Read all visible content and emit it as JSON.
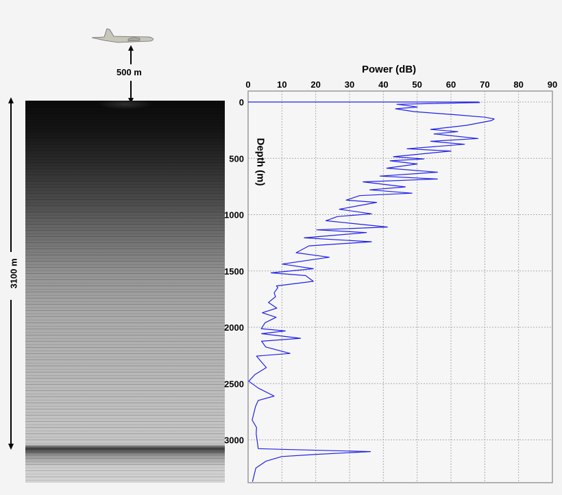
{
  "annotations": {
    "altitude_label": "500 m",
    "ice_thickness_label": "3100 m"
  },
  "icons": {
    "aircraft": "airplane-icon"
  },
  "colors": {
    "series": "#1f1fe6",
    "grid": "#aaaaaa",
    "background": "#f4f4f4"
  },
  "chart_data": {
    "type": "line",
    "title": "",
    "xlabel": "Power (dB)",
    "ylabel": "Depth (m)",
    "xlim": [
      0,
      90
    ],
    "ylim": [
      3375,
      0
    ],
    "x_axis_position": "top",
    "xticks": [
      0,
      10,
      20,
      30,
      40,
      50,
      60,
      70,
      80,
      90
    ],
    "yticks": [
      0,
      500,
      1000,
      1500,
      2000,
      2500,
      3000
    ],
    "grid": true,
    "series": [
      {
        "points": [
          [
            0,
            0
          ],
          [
            25,
            0
          ],
          [
            68,
            0
          ],
          [
            68.5,
            5
          ],
          [
            44,
            20
          ],
          [
            48,
            35
          ],
          [
            50,
            45
          ],
          [
            43.6,
            60
          ],
          [
            49,
            85
          ],
          [
            62,
            115
          ],
          [
            70,
            135
          ],
          [
            72.8,
            150
          ],
          [
            72,
            165
          ],
          [
            64.5,
            207
          ],
          [
            54,
            243
          ],
          [
            62,
            263
          ],
          [
            55,
            283
          ],
          [
            68,
            324
          ],
          [
            54,
            349
          ],
          [
            64,
            375
          ],
          [
            47,
            415
          ],
          [
            60,
            435
          ],
          [
            43,
            486
          ],
          [
            52,
            506
          ],
          [
            42,
            522
          ],
          [
            50,
            550
          ],
          [
            41,
            587
          ],
          [
            56,
            623
          ],
          [
            39,
            658
          ],
          [
            56,
            684
          ],
          [
            34,
            709
          ],
          [
            46.5,
            754
          ],
          [
            36,
            780
          ],
          [
            48.5,
            810
          ],
          [
            33,
            831
          ],
          [
            29,
            871
          ],
          [
            38,
            891
          ],
          [
            27,
            952
          ],
          [
            36.5,
            993
          ],
          [
            26.4,
            1017
          ],
          [
            23,
            1054
          ],
          [
            41.2,
            1110
          ],
          [
            20.3,
            1135
          ],
          [
            35,
            1159
          ],
          [
            16.6,
            1206
          ],
          [
            36.5,
            1241
          ],
          [
            18,
            1277
          ],
          [
            14.2,
            1338
          ],
          [
            24,
            1378
          ],
          [
            10.1,
            1439
          ],
          [
            19.3,
            1480
          ],
          [
            6.8,
            1517
          ],
          [
            17,
            1541
          ],
          [
            19.3,
            1592
          ],
          [
            8.4,
            1633
          ],
          [
            8.8,
            1648
          ],
          [
            7.7,
            1694
          ],
          [
            8.1,
            1729
          ],
          [
            6,
            1780
          ],
          [
            8.5,
            1830
          ],
          [
            4.2,
            1871
          ],
          [
            8.3,
            1911
          ],
          [
            5,
            1960
          ],
          [
            3.9,
            2013
          ],
          [
            11,
            2033
          ],
          [
            4,
            2057
          ],
          [
            15.5,
            2098
          ],
          [
            4,
            2124
          ],
          [
            5.2,
            2175
          ],
          [
            12.4,
            2232
          ],
          [
            2.5,
            2256
          ],
          [
            4,
            2310
          ],
          [
            5.4,
            2358
          ],
          [
            2,
            2420
          ],
          [
            0.2,
            2479
          ],
          [
            3,
            2540
          ],
          [
            7.7,
            2611
          ],
          [
            3,
            2650
          ],
          [
            2.2,
            2702
          ],
          [
            1.2,
            2824
          ],
          [
            2.5,
            2890
          ],
          [
            2.4,
            2946
          ],
          [
            3,
            3078
          ],
          [
            10,
            3084
          ],
          [
            36.2,
            3104
          ],
          [
            20.3,
            3128
          ],
          [
            10,
            3148
          ],
          [
            5.3,
            3189
          ],
          [
            2.3,
            3250
          ],
          [
            1.3,
            3372
          ]
        ]
      }
    ]
  }
}
